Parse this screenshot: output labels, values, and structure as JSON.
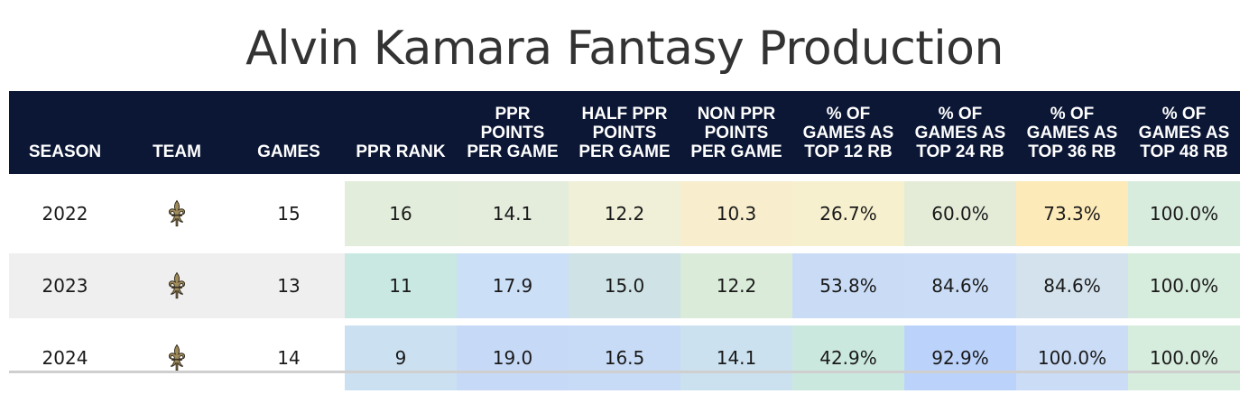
{
  "title": "Alvin Kamara Fantasy Production",
  "colors": {
    "header_bg": "#0b1735",
    "header_text": "#ffffff",
    "logo_gold": "#a08b5b"
  },
  "chart_data": {
    "type": "table",
    "title": "Alvin Kamara Fantasy Production",
    "columns": [
      "SEASON",
      "TEAM",
      "GAMES",
      "PPR RANK",
      "PPR POINTS PER GAME",
      "HALF PPR POINTS PER GAME",
      "NON PPR POINTS PER GAME",
      "% OF GAMES AS TOP 12 RB",
      "% OF GAMES AS TOP 24 RB",
      "% OF GAMES AS TOP 36 RB",
      "% OF GAMES AS TOP 48 RB"
    ],
    "rows": [
      {
        "season": "2022",
        "team_icon": "fleur-de-lis-icon",
        "games": "15",
        "cells": [
          "16",
          "14.1",
          "12.2",
          "10.3",
          "26.7%",
          "60.0%",
          "73.3%",
          "100.0%"
        ],
        "row_bg": "#ffffff",
        "cell_colors": [
          "#e2eddb",
          "#e4ecdc",
          "#f0f0d8",
          "#f8eecd",
          "#f7f0cf",
          "#e4ecd8",
          "#fdeab9",
          "#d7ecdc"
        ]
      },
      {
        "season": "2023",
        "team_icon": "fleur-de-lis-icon",
        "games": "13",
        "cells": [
          "11",
          "17.9",
          "15.0",
          "12.2",
          "53.8%",
          "84.6%",
          "84.6%",
          "100.0%"
        ],
        "row_bg": "#efefef",
        "cell_colors": [
          "#c8e8e1",
          "#cbdff7",
          "#cfe2e6",
          "#daecd9",
          "#cadcf5",
          "#cadcf6",
          "#d3e2ec",
          "#d6ecdc"
        ]
      },
      {
        "season": "2024",
        "team_icon": "fleur-de-lis-icon",
        "games": "14",
        "cells": [
          "9",
          "19.0",
          "16.5",
          "14.1",
          "42.9%",
          "92.9%",
          "100.0%",
          "100.0%"
        ],
        "row_bg": "#ffffff",
        "cell_colors": [
          "#cbe1f1",
          "#c6d9f7",
          "#c8dbf6",
          "#cbe1ef",
          "#cbe8de",
          "#bbd3fb",
          "#cbdcf6",
          "#d6ecdc"
        ]
      }
    ]
  }
}
